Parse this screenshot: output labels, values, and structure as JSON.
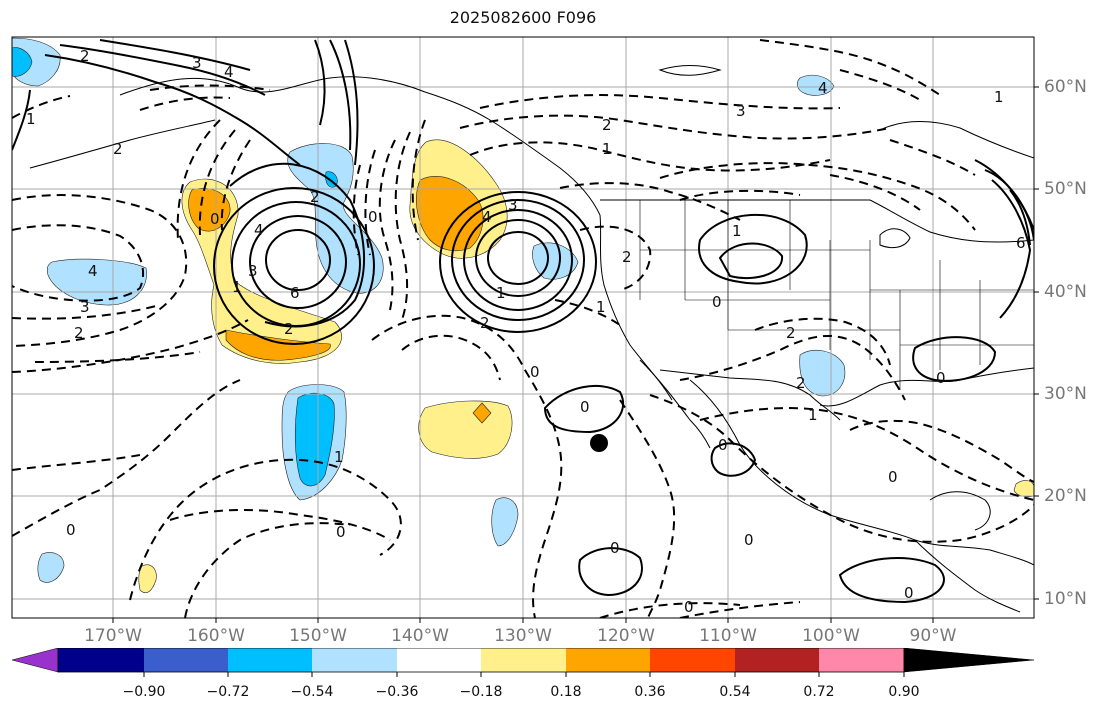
{
  "title": "2025082600 F096",
  "longitude_labels": [
    "170°W",
    "160°W",
    "150°W",
    "140°W",
    "130°W",
    "120°W",
    "110°W",
    "100°W",
    "90°W"
  ],
  "latitude_labels": [
    "60°N",
    "50°N",
    "40°N",
    "30°N",
    "20°N",
    "10°N"
  ],
  "colorbar": {
    "tick_labels": [
      "−0.90",
      "−0.72",
      "−0.54",
      "−0.36",
      "−0.18",
      "0.18",
      "0.36",
      "0.54",
      "0.72",
      "0.90"
    ],
    "colors": [
      "#9932cc",
      "#00008b",
      "#3a5fcd",
      "#00bfff",
      "#b0e2ff",
      "#ffffff",
      "#fff08c",
      "#ffa500",
      "#ff4500",
      "#b22222",
      "#ff88aa"
    ]
  },
  "contour_labels": [
    {
      "text": "2"
    },
    {
      "text": "3"
    },
    {
      "text": "4"
    },
    {
      "text": "2"
    },
    {
      "text": "1"
    },
    {
      "text": "0"
    },
    {
      "text": "4"
    },
    {
      "text": "3"
    },
    {
      "text": "2"
    },
    {
      "text": "1"
    },
    {
      "text": "6"
    },
    {
      "text": "4"
    },
    {
      "text": "3"
    },
    {
      "text": "2"
    },
    {
      "text": "0"
    },
    {
      "text": "4"
    },
    {
      "text": "3"
    },
    {
      "text": "1"
    },
    {
      "text": "2"
    },
    {
      "text": "2"
    },
    {
      "text": "3"
    },
    {
      "text": "2"
    },
    {
      "text": "1"
    },
    {
      "text": "4"
    },
    {
      "text": "1"
    },
    {
      "text": "2"
    },
    {
      "text": "1"
    },
    {
      "text": "0"
    },
    {
      "text": "0"
    },
    {
      "text": "2"
    },
    {
      "text": "2"
    },
    {
      "text": "1"
    },
    {
      "text": "0"
    },
    {
      "text": "0"
    },
    {
      "text": "0"
    },
    {
      "text": "0"
    },
    {
      "text": "0"
    },
    {
      "text": "0"
    },
    {
      "text": "0"
    },
    {
      "text": "0"
    },
    {
      "text": "0"
    },
    {
      "text": "0"
    },
    {
      "text": "1"
    },
    {
      "text": "6"
    },
    {
      "text": "1"
    }
  ]
}
